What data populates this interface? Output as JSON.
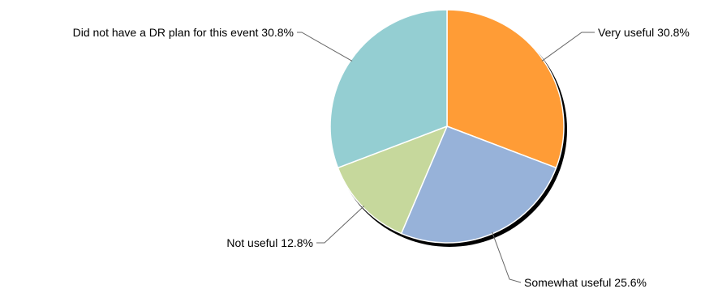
{
  "chart_data": {
    "type": "pie",
    "slices": [
      {
        "label": "Very useful",
        "value": 30.8,
        "value_text": "30.8%",
        "color": "#FF9C36"
      },
      {
        "label": "Somewhat useful",
        "value": 25.6,
        "value_text": "25.6%",
        "color": "#97B2D9"
      },
      {
        "label": "Not useful",
        "value": 12.8,
        "value_text": "12.8%",
        "color": "#C6D89C"
      },
      {
        "label": "Did not have a DR plan for this event",
        "value": 30.8,
        "value_text": "30.8%",
        "color": "#94CED2"
      }
    ],
    "start": "12 o'clock",
    "direction": "clockwise",
    "legend": "none",
    "labels": "outside with leader lines"
  }
}
